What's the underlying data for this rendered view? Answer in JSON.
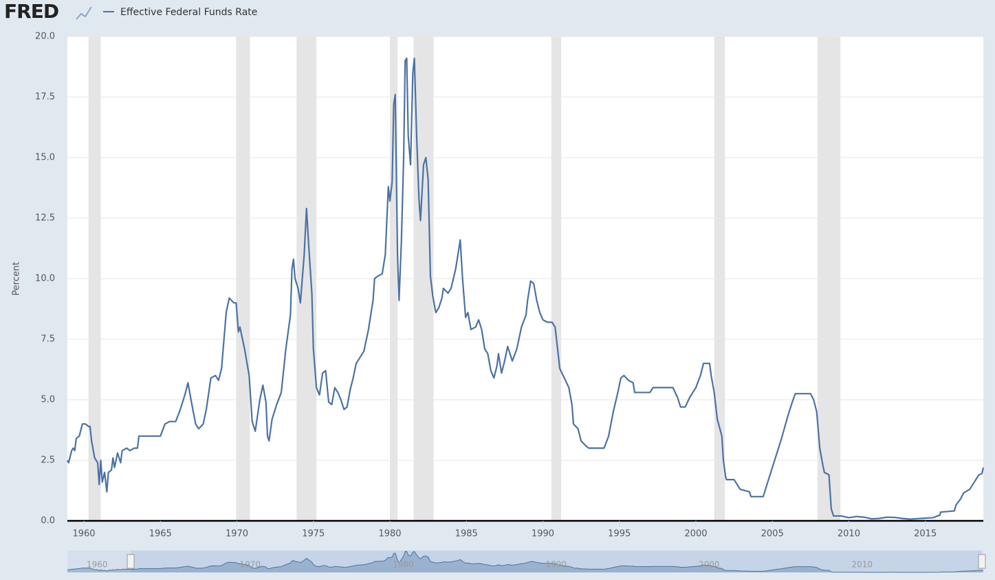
{
  "logo": "FRED",
  "chart_data": {
    "type": "line",
    "ylabel": "Percent",
    "series": [
      {
        "name": "Effective Federal Funds Rate",
        "color": "#4a72a4",
        "x": [
          1958.92,
          1959.0,
          1959.2,
          1959.3,
          1959.4,
          1959.5,
          1959.7,
          1959.9,
          1960.1,
          1960.3,
          1960.4,
          1960.5,
          1960.7,
          1960.9,
          1961.0,
          1961.1,
          1961.2,
          1961.35,
          1961.5,
          1961.6,
          1961.8,
          1961.9,
          1962.0,
          1962.2,
          1962.4,
          1962.5,
          1962.8,
          1963.0,
          1963.3,
          1963.5,
          1963.6,
          1964.0,
          1964.5,
          1965.0,
          1965.3,
          1965.6,
          1966.0,
          1966.3,
          1966.6,
          1966.8,
          1967.0,
          1967.3,
          1967.5,
          1967.8,
          1968.0,
          1968.3,
          1968.6,
          1968.8,
          1969.0,
          1969.3,
          1969.5,
          1969.8,
          1969.95,
          1970.1,
          1970.2,
          1970.5,
          1970.8,
          1971.0,
          1971.2,
          1971.5,
          1971.7,
          1971.9,
          1972.0,
          1972.1,
          1972.3,
          1972.6,
          1972.9,
          1973.2,
          1973.5,
          1973.6,
          1973.7,
          1973.8,
          1974.0,
          1974.15,
          1974.4,
          1974.55,
          1974.7,
          1974.9,
          1975.0,
          1975.2,
          1975.4,
          1975.6,
          1975.8,
          1976.0,
          1976.2,
          1976.4,
          1976.6,
          1976.8,
          1977.0,
          1977.2,
          1977.4,
          1977.6,
          1977.8,
          1978.0,
          1978.3,
          1978.6,
          1978.9,
          1979.0,
          1979.2,
          1979.5,
          1979.7,
          1979.9,
          1980.0,
          1980.15,
          1980.25,
          1980.35,
          1980.5,
          1980.6,
          1980.75,
          1980.9,
          1981.0,
          1981.1,
          1981.2,
          1981.35,
          1981.5,
          1981.6,
          1981.75,
          1981.9,
          1982.0,
          1982.2,
          1982.35,
          1982.5,
          1982.65,
          1982.8,
          1983.0,
          1983.2,
          1983.4,
          1983.5,
          1983.8,
          1984.0,
          1984.3,
          1984.5,
          1984.6,
          1984.75,
          1984.95,
          1985.1,
          1985.3,
          1985.6,
          1985.8,
          1986.0,
          1986.2,
          1986.4,
          1986.6,
          1986.8,
          1987.0,
          1987.1,
          1987.3,
          1987.5,
          1987.7,
          1987.9,
          1988.0,
          1988.3,
          1988.6,
          1988.9,
          1989.0,
          1989.2,
          1989.4,
          1989.6,
          1989.8,
          1990.0,
          1990.3,
          1990.6,
          1990.8,
          1991.0,
          1991.1,
          1991.4,
          1991.7,
          1991.9,
          1992.0,
          1992.3,
          1992.5,
          1992.8,
          1993.0,
          1993.5,
          1994.0,
          1994.3,
          1994.6,
          1994.9,
          1995.1,
          1995.3,
          1995.6,
          1995.9,
          1996.0,
          1996.5,
          1997.0,
          1997.2,
          1997.6,
          1998.0,
          1998.5,
          1998.8,
          1999.0,
          1999.3,
          1999.6,
          1999.9,
          2000.0,
          2000.3,
          2000.5,
          2000.9,
          2001.0,
          2001.2,
          2001.4,
          2001.7,
          2001.8,
          2001.95,
          2002.0,
          2002.5,
          2002.9,
          2003.5,
          2003.6,
          2004.0,
          2004.4,
          2004.6,
          2004.9,
          2005.3,
          2005.6,
          2006.0,
          2006.3,
          2006.5,
          2007.0,
          2007.5,
          2007.7,
          2007.9,
          2008.1,
          2008.3,
          2008.4,
          2008.7,
          2008.85,
          2009.0,
          2009.5,
          2010.0,
          2010.5,
          2011.0,
          2011.5,
          2012.0,
          2012.5,
          2013.0,
          2013.5,
          2014.0,
          2014.5,
          2015.0,
          2015.5,
          2015.95,
          2016.0,
          2016.9,
          2017.0,
          2017.3,
          2017.5,
          2017.9,
          2018.1,
          2018.3,
          2018.5,
          2018.7,
          2018.79
        ],
        "values": [
          2.5,
          2.4,
          2.9,
          3.0,
          2.9,
          3.4,
          3.5,
          4.0,
          4.0,
          3.9,
          3.9,
          3.3,
          2.6,
          2.4,
          1.5,
          2.5,
          1.6,
          2.0,
          1.2,
          2.0,
          2.1,
          2.6,
          2.2,
          2.8,
          2.4,
          2.9,
          3.0,
          2.9,
          3.0,
          3.0,
          3.5,
          3.5,
          3.5,
          3.5,
          4.0,
          4.1,
          4.1,
          4.6,
          5.2,
          5.7,
          5.0,
          4.0,
          3.8,
          4.0,
          4.6,
          5.9,
          6.0,
          5.8,
          6.3,
          8.6,
          9.2,
          9.0,
          9.0,
          7.8,
          8.0,
          7.1,
          6.0,
          4.1,
          3.7,
          5.0,
          5.6,
          4.9,
          3.5,
          3.3,
          4.2,
          4.8,
          5.3,
          7.1,
          8.5,
          10.4,
          10.8,
          10.0,
          9.6,
          9.0,
          11.0,
          12.9,
          11.3,
          9.4,
          7.1,
          5.5,
          5.2,
          6.1,
          6.2,
          4.9,
          4.8,
          5.5,
          5.3,
          5.0,
          4.6,
          4.7,
          5.4,
          5.9,
          6.5,
          6.7,
          7.0,
          7.9,
          9.1,
          10.0,
          10.1,
          10.2,
          11.0,
          13.8,
          13.2,
          14.0,
          17.2,
          17.6,
          11.0,
          9.1,
          11.5,
          15.0,
          19.0,
          19.1,
          15.9,
          14.7,
          18.5,
          19.1,
          15.9,
          13.3,
          12.4,
          14.7,
          15.0,
          14.1,
          10.1,
          9.3,
          8.6,
          8.8,
          9.2,
          9.6,
          9.4,
          9.6,
          10.4,
          11.2,
          11.6,
          10.0,
          8.4,
          8.6,
          7.9,
          8.0,
          8.3,
          7.9,
          7.1,
          6.9,
          6.2,
          5.9,
          6.4,
          6.9,
          6.1,
          6.6,
          7.2,
          6.8,
          6.6,
          7.1,
          8.0,
          8.5,
          9.1,
          9.9,
          9.8,
          9.1,
          8.6,
          8.3,
          8.2,
          8.2,
          8.0,
          6.9,
          6.3,
          5.9,
          5.5,
          4.8,
          4.0,
          3.8,
          3.3,
          3.1,
          3.0,
          3.0,
          3.0,
          3.5,
          4.5,
          5.3,
          5.9,
          6.0,
          5.8,
          5.7,
          5.3,
          5.3,
          5.3,
          5.5,
          5.5,
          5.5,
          5.5,
          5.1,
          4.7,
          4.7,
          5.1,
          5.4,
          5.5,
          6.0,
          6.5,
          6.5,
          6.0,
          5.3,
          4.2,
          3.5,
          2.5,
          1.8,
          1.7,
          1.7,
          1.3,
          1.2,
          1.0,
          1.0,
          1.0,
          1.4,
          2.0,
          2.8,
          3.4,
          4.3,
          4.9,
          5.25,
          5.25,
          5.25,
          5.0,
          4.5,
          3.0,
          2.3,
          2.0,
          1.9,
          0.5,
          0.2,
          0.2,
          0.13,
          0.18,
          0.15,
          0.08,
          0.1,
          0.15,
          0.14,
          0.1,
          0.07,
          0.09,
          0.11,
          0.13,
          0.24,
          0.36,
          0.41,
          0.65,
          0.9,
          1.15,
          1.3,
          1.5,
          1.7,
          1.9,
          1.95,
          2.2
        ]
      }
    ],
    "recessions": [
      [
        1960.3,
        1961.1
      ],
      [
        1969.95,
        1970.85
      ],
      [
        1973.9,
        1975.2
      ],
      [
        1980.0,
        1980.5
      ],
      [
        1981.55,
        1982.85
      ],
      [
        1990.55,
        1991.2
      ],
      [
        2001.2,
        2001.9
      ],
      [
        2007.95,
        2009.45
      ]
    ],
    "xlim": [
      1958.92,
      2018.79
    ],
    "xticks": [
      1960,
      1965,
      1970,
      1975,
      1980,
      1985,
      1990,
      1995,
      2000,
      2005,
      2010,
      2015
    ],
    "ylim": [
      0,
      20
    ],
    "yticks": [
      {
        "value": 0,
        "label": "0.0"
      },
      2.5,
      {
        "value": 5,
        "label": "5.0"
      },
      7.5,
      {
        "value": 10,
        "label": "10.0"
      },
      12.5,
      {
        "value": 15,
        "label": "15.0"
      },
      17.5,
      {
        "value": 20,
        "label": "20.0"
      }
    ],
    "grid": true,
    "navigator_xticks": [
      1960,
      1970,
      1980,
      1990,
      2000,
      2010
    ]
  }
}
